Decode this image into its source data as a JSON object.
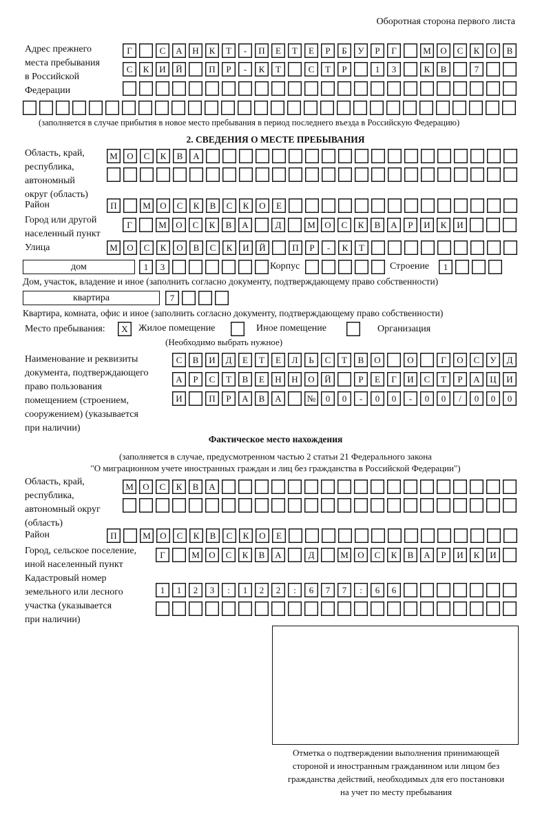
{
  "header": "Оборотная сторона первого листа",
  "prev_address": {
    "label": [
      "Адрес прежнего",
      "места пребывания",
      "в Российской",
      "Федерации"
    ],
    "rows": [
      [
        "Г",
        "",
        "С",
        "А",
        "Н",
        "К",
        "Т",
        "-",
        "П",
        "Е",
        "Т",
        "Е",
        "Р",
        "Б",
        "У",
        "Р",
        "Г",
        "",
        "М",
        "О",
        "С",
        "К",
        "О",
        "В"
      ],
      [
        "С",
        "К",
        "И",
        "Й",
        "",
        "П",
        "Р",
        "-",
        "К",
        "Т",
        "",
        "С",
        "Т",
        "Р",
        "",
        "1",
        "3",
        "",
        "К",
        "В",
        "",
        "7",
        "",
        ""
      ],
      [
        "",
        "",
        "",
        "",
        "",
        "",
        "",
        "",
        "",
        "",
        "",
        "",
        "",
        "",
        "",
        "",
        "",
        "",
        "",
        "",
        "",
        "",
        "",
        ""
      ],
      [
        "",
        "",
        "",
        "",
        "",
        "",
        "",
        "",
        "",
        "",
        "",
        "",
        "",
        "",
        "",
        "",
        "",
        "",
        "",
        "",
        "",
        "",
        "",
        "",
        "",
        "",
        "",
        "",
        "",
        ""
      ]
    ],
    "note": "(заполняется в случае прибытия в новое место пребывания в период последнего въезда в Российскую Федерацию)"
  },
  "section2": {
    "title": "2. СВЕДЕНИЯ О МЕСТЕ ПРЕБЫВАНИЯ",
    "region_label": [
      "Область, край,",
      "республика,",
      "автономный",
      "округ (область)"
    ],
    "region_rows": [
      [
        "М",
        "О",
        "С",
        "К",
        "В",
        "А",
        "",
        "",
        "",
        "",
        "",
        "",
        "",
        "",
        "",
        "",
        "",
        "",
        "",
        "",
        "",
        "",
        "",
        "",
        ""
      ],
      [
        "",
        "",
        "",
        "",
        "",
        "",
        "",
        "",
        "",
        "",
        "",
        "",
        "",
        "",
        "",
        "",
        "",
        "",
        "",
        "",
        "",
        "",
        "",
        "",
        ""
      ]
    ],
    "district_label": "Район",
    "district_row": [
      "П",
      "",
      "М",
      "О",
      "С",
      "К",
      "В",
      "С",
      "К",
      "О",
      "Е",
      "",
      "",
      "",
      "",
      "",
      "",
      "",
      "",
      "",
      "",
      "",
      "",
      "",
      ""
    ],
    "city_label": [
      "Город или другой",
      "населенный пункт"
    ],
    "city_row": [
      "Г",
      "",
      "М",
      "О",
      "С",
      "К",
      "В",
      "А",
      "",
      "Д",
      "",
      "М",
      "О",
      "С",
      "К",
      "В",
      "А",
      "Р",
      "И",
      "К",
      "И",
      "",
      "",
      ""
    ],
    "street_label": "Улица",
    "street_row": [
      "М",
      "О",
      "С",
      "К",
      "О",
      "В",
      "С",
      "К",
      "И",
      "Й",
      "",
      "П",
      "Р",
      "-",
      "К",
      "Т",
      "",
      "",
      "",
      "",
      "",
      "",
      "",
      "",
      ""
    ],
    "house_type": "дом",
    "house_boxes": [
      "1",
      "3",
      "",
      "",
      "",
      "",
      "",
      ""
    ],
    "korpus_label": "Корпус",
    "korpus_boxes": [
      "",
      "",
      "",
      "",
      ""
    ],
    "building_label": "Строение",
    "building_boxes": [
      "1",
      "",
      "",
      ""
    ],
    "house_note": "Дом, участок, владение и иное (заполнить согласно документу, подтверждающему право собственности)",
    "flat_type": "квартира",
    "flat_boxes": [
      "7",
      "",
      "",
      ""
    ],
    "flat_note": "Квартира, комната, офис и иное (заполнить согласно документу, подтверждающему право собственности)",
    "stay_label": "Место пребывания:",
    "options": [
      {
        "label": "Жилое помещение",
        "mark": "X"
      },
      {
        "label": "Иное помещение",
        "mark": ""
      },
      {
        "label": "Организация",
        "mark": ""
      }
    ],
    "stay_note": "(Необходимо выбрать нужное)",
    "doc_label": [
      "Наименование и реквизиты",
      "документа, подтверждающего",
      "право пользования",
      "помещением (строением,",
      "сооружением) (указывается",
      "при наличии)"
    ],
    "doc_rows": [
      [
        "С",
        "В",
        "И",
        "Д",
        "Е",
        "Т",
        "Е",
        "Л",
        "Ь",
        "С",
        "Т",
        "В",
        "О",
        "",
        "О",
        "",
        "Г",
        "О",
        "С",
        "У",
        "Д"
      ],
      [
        "А",
        "Р",
        "С",
        "Т",
        "В",
        "Е",
        "Н",
        "Н",
        "О",
        "Й",
        "",
        "Р",
        "Е",
        "Г",
        "И",
        "С",
        "Т",
        "Р",
        "А",
        "Ц",
        "И"
      ],
      [
        "И",
        "",
        "П",
        "Р",
        "А",
        "В",
        "А",
        "",
        "№",
        "0",
        "0",
        "-",
        "0",
        "0",
        "-",
        "0",
        "0",
        "/",
        "0",
        "0",
        "0"
      ]
    ]
  },
  "actual": {
    "title": "Фактическое место нахождения",
    "subtitle": [
      "(заполняется в случае, предусмотренном частью 2 статьи 21 Федерального закона",
      "\"О миграционном учете иностранных граждан и лиц без гражданства в Российской Федерации\")"
    ],
    "region_label": [
      "Область, край,",
      "республика,",
      "автономный округ",
      "(область)"
    ],
    "region_rows": [
      [
        "М",
        "О",
        "С",
        "К",
        "В",
        "А",
        "",
        "",
        "",
        "",
        "",
        "",
        "",
        "",
        "",
        "",
        "",
        "",
        "",
        "",
        "",
        "",
        "",
        ""
      ],
      [
        "",
        "",
        "",
        "",
        "",
        "",
        "",
        "",
        "",
        "",
        "",
        "",
        "",
        "",
        "",
        "",
        "",
        "",
        "",
        "",
        "",
        "",
        "",
        ""
      ]
    ],
    "district_label": "Район",
    "district_row": [
      "П",
      "",
      "М",
      "О",
      "С",
      "К",
      "В",
      "С",
      "К",
      "О",
      "Е",
      "",
      "",
      "",
      "",
      "",
      "",
      "",
      "",
      "",
      "",
      "",
      "",
      "",
      ""
    ],
    "city_label": [
      "Город, сельское поселение,",
      "иной населенный пункт"
    ],
    "city_row": [
      "Г",
      "",
      "М",
      "О",
      "С",
      "К",
      "В",
      "А",
      "",
      "Д",
      "",
      "М",
      "О",
      "С",
      "К",
      "В",
      "А",
      "Р",
      "И",
      "К",
      "И",
      ""
    ],
    "cadastral_label": [
      "Кадастровый номер",
      "земельного или лесного",
      "участка (указывается",
      "при наличии)"
    ],
    "cadastral_rows": [
      [
        "1",
        "1",
        "2",
        "3",
        ":",
        "1",
        "2",
        "2",
        ":",
        "6",
        "7",
        "7",
        ":",
        "6",
        "6",
        "",
        "",
        "",
        "",
        "",
        "",
        ""
      ],
      [
        "",
        "",
        "",
        "",
        "",
        "",
        "",
        "",
        "",
        "",
        "",
        "",
        "",
        "",
        "",
        "",
        "",
        "",
        "",
        "",
        "",
        ""
      ]
    ]
  },
  "stamp_caption": [
    "Отметка о подтверждении выполнения принимающей",
    "стороной и иностранным гражданином или лицом без",
    "гражданства действий, необходимых для его постановки",
    "на учет по месту пребывания"
  ]
}
